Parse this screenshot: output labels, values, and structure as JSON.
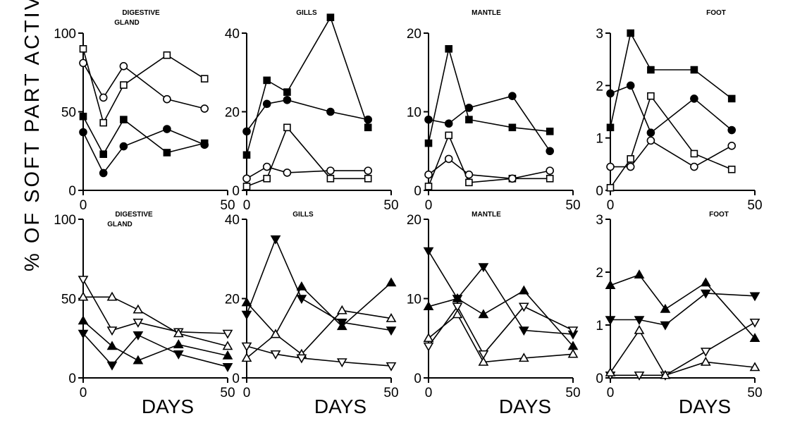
{
  "figure": {
    "ylabel": "% OF SOFT PART ACTIVITY",
    "xlabels": [
      "DAYS",
      "DAYS",
      "DAYS",
      "DAYS"
    ]
  },
  "chart_data": [
    {
      "type": "line",
      "title": "DIGESTIVE GLAND",
      "xlabel": "DAYS",
      "ylabel": "",
      "xlim": [
        0,
        50
      ],
      "ylim": [
        0,
        100
      ],
      "xticks": [
        0,
        50
      ],
      "yticks": [
        0,
        50,
        100
      ],
      "series": [
        {
          "marker": "open-square",
          "points": [
            [
              0,
              90
            ],
            [
              7,
              43
            ],
            [
              14,
              67
            ],
            [
              29,
              86
            ],
            [
              42,
              71
            ]
          ]
        },
        {
          "marker": "open-circle",
          "points": [
            [
              0,
              81
            ],
            [
              7,
              59
            ],
            [
              14,
              79
            ],
            [
              29,
              58
            ],
            [
              42,
              52
            ]
          ]
        },
        {
          "marker": "filled-square",
          "points": [
            [
              0,
              47
            ],
            [
              7,
              23
            ],
            [
              14,
              45
            ],
            [
              29,
              24
            ],
            [
              42,
              30
            ]
          ]
        },
        {
          "marker": "filled-circle",
          "points": [
            [
              0,
              37
            ],
            [
              7,
              11
            ],
            [
              14,
              28
            ],
            [
              29,
              39
            ],
            [
              42,
              29
            ]
          ]
        }
      ]
    },
    {
      "type": "line",
      "title": "GILLS",
      "xlabel": "DAYS",
      "ylabel": "",
      "xlim": [
        0,
        50
      ],
      "ylim": [
        0,
        40
      ],
      "xticks": [
        0,
        50
      ],
      "yticks": [
        0,
        20,
        40
      ],
      "series": [
        {
          "marker": "filled-square",
          "points": [
            [
              0,
              9
            ],
            [
              7,
              28
            ],
            [
              14,
              25
            ],
            [
              29,
              44
            ],
            [
              42,
              16
            ]
          ]
        },
        {
          "marker": "filled-circle",
          "points": [
            [
              0,
              15
            ],
            [
              7,
              22
            ],
            [
              14,
              23
            ],
            [
              29,
              20
            ],
            [
              42,
              18
            ]
          ]
        },
        {
          "marker": "open-square",
          "points": [
            [
              0,
              1
            ],
            [
              7,
              3
            ],
            [
              14,
              16
            ],
            [
              29,
              3
            ],
            [
              42,
              3
            ]
          ]
        },
        {
          "marker": "open-circle",
          "points": [
            [
              0,
              3
            ],
            [
              7,
              6
            ],
            [
              14,
              4.5
            ],
            [
              29,
              5
            ],
            [
              42,
              5
            ]
          ]
        }
      ]
    },
    {
      "type": "line",
      "title": "MANTLE",
      "xlabel": "DAYS",
      "ylabel": "",
      "xlim": [
        0,
        50
      ],
      "ylim": [
        0,
        20
      ],
      "xticks": [
        0,
        50
      ],
      "yticks": [
        0,
        10,
        20
      ],
      "series": [
        {
          "marker": "filled-square",
          "points": [
            [
              0,
              6
            ],
            [
              7,
              18
            ],
            [
              14,
              9
            ],
            [
              29,
              8
            ],
            [
              42,
              7.5
            ]
          ]
        },
        {
          "marker": "filled-circle",
          "points": [
            [
              0,
              9
            ],
            [
              7,
              8.5
            ],
            [
              14,
              10.5
            ],
            [
              29,
              12
            ],
            [
              42,
              5
            ]
          ]
        },
        {
          "marker": "open-square",
          "points": [
            [
              0,
              0.5
            ],
            [
              7,
              7
            ],
            [
              14,
              1
            ],
            [
              29,
              1.5
            ],
            [
              42,
              1.5
            ]
          ]
        },
        {
          "marker": "open-circle",
          "points": [
            [
              0,
              2
            ],
            [
              7,
              4
            ],
            [
              14,
              2
            ],
            [
              29,
              1.5
            ],
            [
              42,
              2.5
            ]
          ]
        }
      ]
    },
    {
      "type": "line",
      "title": "FOOT",
      "xlabel": "DAYS",
      "ylabel": "",
      "xlim": [
        0,
        50
      ],
      "ylim": [
        0,
        3
      ],
      "xticks": [
        0,
        50
      ],
      "yticks": [
        0,
        1,
        2,
        3
      ],
      "series": [
        {
          "marker": "filled-square",
          "points": [
            [
              0,
              1.2
            ],
            [
              7,
              3
            ],
            [
              14,
              2.3
            ],
            [
              29,
              2.3
            ],
            [
              42,
              1.75
            ]
          ]
        },
        {
          "marker": "filled-circle",
          "points": [
            [
              0,
              1.85
            ],
            [
              7,
              2
            ],
            [
              14,
              1.1
            ],
            [
              29,
              1.75
            ],
            [
              42,
              1.15
            ]
          ]
        },
        {
          "marker": "open-square",
          "points": [
            [
              0,
              0.05
            ],
            [
              7,
              0.6
            ],
            [
              14,
              1.8
            ],
            [
              29,
              0.7
            ],
            [
              42,
              0.4
            ]
          ]
        },
        {
          "marker": "open-circle",
          "points": [
            [
              0,
              0.45
            ],
            [
              7,
              0.45
            ],
            [
              14,
              0.95
            ],
            [
              29,
              0.45
            ],
            [
              42,
              0.85
            ]
          ]
        }
      ]
    },
    {
      "type": "line",
      "title": "DIGESTIVE GLAND",
      "xlabel": "DAYS",
      "ylabel": "",
      "xlim": [
        0,
        50
      ],
      "ylim": [
        0,
        100
      ],
      "xticks": [
        0,
        50
      ],
      "yticks": [
        0,
        50,
        100
      ],
      "series": [
        {
          "marker": "open-down-triangle",
          "points": [
            [
              0,
              62
            ],
            [
              10,
              30
            ],
            [
              19,
              35
            ],
            [
              33,
              29
            ],
            [
              50,
              28
            ]
          ]
        },
        {
          "marker": "open-up-triangle",
          "points": [
            [
              0,
              51
            ],
            [
              10,
              51
            ],
            [
              19,
              43
            ],
            [
              33,
              28
            ],
            [
              50,
              20
            ]
          ]
        },
        {
          "marker": "filled-up-triangle",
          "points": [
            [
              0,
              36
            ],
            [
              10,
              20
            ],
            [
              19,
              11
            ],
            [
              33,
              21
            ],
            [
              50,
              14
            ]
          ]
        },
        {
          "marker": "filled-down-triangle",
          "points": [
            [
              0,
              28
            ],
            [
              10,
              8
            ],
            [
              19,
              27
            ],
            [
              33,
              15
            ],
            [
              50,
              7
            ]
          ]
        }
      ]
    },
    {
      "type": "line",
      "title": "GILLS",
      "xlabel": "DAYS",
      "ylabel": "",
      "xlim": [
        0,
        50
      ],
      "ylim": [
        0,
        40
      ],
      "xticks": [
        0,
        50
      ],
      "yticks": [
        0,
        20,
        40
      ],
      "series": [
        {
          "marker": "filled-down-triangle",
          "points": [
            [
              0,
              16
            ],
            [
              10,
              35
            ],
            [
              19,
              20
            ],
            [
              33,
              14
            ],
            [
              50,
              12
            ]
          ]
        },
        {
          "marker": "filled-up-triangle",
          "points": [
            [
              0,
              19
            ],
            [
              10,
              11
            ],
            [
              19,
              23
            ],
            [
              33,
              13
            ],
            [
              50,
              24
            ]
          ]
        },
        {
          "marker": "open-up-triangle",
          "points": [
            [
              0,
              5
            ],
            [
              10,
              11
            ],
            [
              19,
              6
            ],
            [
              33,
              17
            ],
            [
              50,
              15
            ]
          ]
        },
        {
          "marker": "open-down-triangle",
          "points": [
            [
              0,
              8
            ],
            [
              10,
              6
            ],
            [
              19,
              5
            ],
            [
              33,
              4
            ],
            [
              50,
              3
            ]
          ]
        }
      ]
    },
    {
      "type": "line",
      "title": "MANTLE",
      "xlabel": "DAYS",
      "ylabel": "",
      "xlim": [
        0,
        50
      ],
      "ylim": [
        0,
        20
      ],
      "xticks": [
        0,
        50
      ],
      "yticks": [
        0,
        10,
        20
      ],
      "series": [
        {
          "marker": "filled-down-triangle",
          "points": [
            [
              0,
              16
            ],
            [
              10,
              10
            ],
            [
              19,
              14
            ],
            [
              33,
              6
            ],
            [
              50,
              5.5
            ]
          ]
        },
        {
          "marker": "filled-up-triangle",
          "points": [
            [
              0,
              9
            ],
            [
              10,
              10
            ],
            [
              19,
              8
            ],
            [
              33,
              11
            ],
            [
              50,
              4
            ]
          ]
        },
        {
          "marker": "open-down-triangle",
          "points": [
            [
              0,
              4
            ],
            [
              10,
              9
            ],
            [
              19,
              3
            ],
            [
              33,
              9
            ],
            [
              50,
              6
            ]
          ]
        },
        {
          "marker": "open-up-triangle",
          "points": [
            [
              0,
              5
            ],
            [
              10,
              8
            ],
            [
              19,
              2
            ],
            [
              33,
              2.5
            ],
            [
              50,
              3
            ]
          ]
        }
      ]
    },
    {
      "type": "line",
      "title": "FOOT",
      "xlabel": "DAYS",
      "ylabel": "",
      "xlim": [
        0,
        50
      ],
      "ylim": [
        0,
        3
      ],
      "xticks": [
        0,
        50
      ],
      "yticks": [
        0,
        1,
        2,
        3
      ],
      "series": [
        {
          "marker": "filled-up-triangle",
          "points": [
            [
              0,
              1.75
            ],
            [
              10,
              1.95
            ],
            [
              19,
              1.3
            ],
            [
              33,
              1.8
            ],
            [
              50,
              0.75
            ]
          ]
        },
        {
          "marker": "filled-down-triangle",
          "points": [
            [
              0,
              1.1
            ],
            [
              10,
              1.1
            ],
            [
              19,
              1
            ],
            [
              33,
              1.6
            ],
            [
              50,
              1.55
            ]
          ]
        },
        {
          "marker": "open-down-triangle",
          "points": [
            [
              0,
              0.05
            ],
            [
              10,
              0.05
            ],
            [
              19,
              0.05
            ],
            [
              33,
              0.5
            ],
            [
              50,
              1.05
            ]
          ]
        },
        {
          "marker": "open-up-triangle",
          "points": [
            [
              0,
              0.1
            ],
            [
              10,
              0.9
            ],
            [
              19,
              0.05
            ],
            [
              33,
              0.3
            ],
            [
              50,
              0.2
            ]
          ]
        }
      ]
    }
  ]
}
